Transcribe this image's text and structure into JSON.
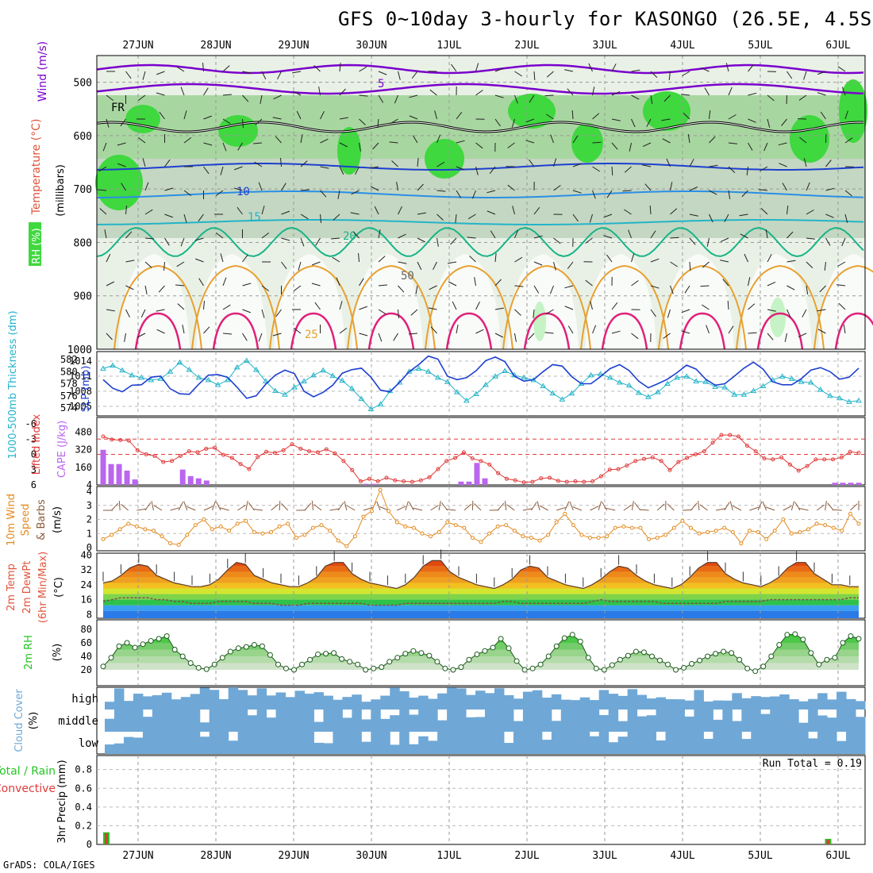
{
  "title": "GFS 0~10day 3-hourly for KASONGO (26.5E, 4.5S)",
  "credit": "GrADS: COLA/IGES",
  "colors": {
    "wind": "#7a00cc",
    "temperature": "#e0553c",
    "rh": "#23c623",
    "thickness": "#23b4c8",
    "slp": "#1d3fd0",
    "lifted": "#e03a3a",
    "cape": "#bb66ee",
    "wind10": "#e48a1e",
    "barb": "#8a5a3a",
    "cloud": "#6fa8d6",
    "precip_total": "#23c623",
    "precip_conv": "#e03a3a"
  },
  "dates": [
    "27JUN",
    "28JUN",
    "29JUN",
    "30JUN",
    "1JUL",
    "2JUL",
    "3JUL",
    "4JUL",
    "5JUL",
    "6JUL"
  ],
  "panels": {
    "upper": {
      "yticks": [
        "500",
        "600",
        "700",
        "800",
        "900",
        "1000"
      ],
      "ylabel_parts": [
        "Wind (m/s)",
        "Temperature (°C)",
        "RH (%)",
        "(millibars)"
      ],
      "contours": [
        {
          "label": "5",
          "note": "isotach"
        },
        {
          "label": "FR",
          "note": "freezing"
        },
        {
          "label": "10",
          "note": "isotherm"
        },
        {
          "label": "15",
          "note": "isotherm"
        },
        {
          "label": "20",
          "note": "isotherm"
        },
        {
          "label": "25",
          "note": "isotherm"
        },
        {
          "label": "50",
          "note": "rh"
        }
      ]
    },
    "slp": {
      "left_label": "1000-500mb Thickness (dm)",
      "right_label": "SLP (mb)",
      "left_ticks": [
        "582",
        "580",
        "578",
        "576",
        "574"
      ],
      "right_ticks": [
        "1014",
        "1011",
        "1008",
        "1005"
      ]
    },
    "cape": {
      "left_label": "Lifted Index",
      "right_label": "CAPE (J/kg)",
      "left_ticks": [
        "-6",
        "-3",
        "0",
        "3",
        "6"
      ],
      "right_ticks": [
        "480",
        "320",
        "160",
        "4"
      ]
    },
    "wind10": {
      "label_parts": [
        "10m Wind",
        "Speed",
        "& Barbs",
        "(m/s)"
      ],
      "ticks": [
        "4",
        "3",
        "2",
        "1",
        "0"
      ]
    },
    "temp": {
      "label_parts": [
        "2m Temp",
        "2m DewPt",
        "(6hr Min/Max)",
        "(°C)"
      ],
      "ticks": [
        "40",
        "32",
        "24",
        "16",
        "8"
      ]
    },
    "rh2m": {
      "label_parts": [
        "2m RH",
        "(%)"
      ],
      "ticks": [
        "80",
        "60",
        "40",
        "20"
      ]
    },
    "cloud": {
      "label_parts": [
        "Cloud Cover",
        "(%)"
      ],
      "levels": [
        "high",
        "middle",
        "low"
      ]
    },
    "precip": {
      "label_parts": [
        "Total / Rain",
        "Convective",
        "3hr Precip (mm)"
      ],
      "ticks": [
        "0.8",
        "0.6",
        "0.4",
        "0.2",
        "0"
      ],
      "run_total": "Run Total = 0.19"
    }
  },
  "chart_data": [
    {
      "type": "line",
      "title": "1000-500mb Thickness / SLP",
      "series": [
        {
          "name": "1000-500mb Thickness (dm)",
          "values": [
            580.5,
            581.0,
            580.2,
            579.4,
            579.0,
            578.6,
            578.8,
            580.0,
            581.5,
            580.3,
            579.0,
            578.6,
            577.8,
            578.6,
            580.7,
            581.8,
            580.3,
            578.4,
            576.8,
            576.2,
            577.4,
            578.4,
            579.4,
            580.2,
            579.3,
            578.5,
            577.2,
            575.5,
            573.8,
            574.6,
            576.8,
            578.2,
            580.0,
            580.5,
            580.0,
            579.0,
            578.3,
            576.6,
            575.2,
            576.3,
            577.8,
            579.2,
            580.1,
            579.4,
            579.0,
            578.6,
            577.6,
            576.4,
            575.4,
            576.4,
            578.0,
            579.4,
            579.6,
            579.0,
            578.2,
            577.7,
            576.5,
            575.8,
            576.6,
            578.0,
            579.0,
            579.2,
            578.4,
            578.3,
            577.5,
            577.4,
            576.2,
            576.2,
            576.8,
            577.6,
            578.6,
            579.2,
            578.8,
            578.3,
            578.2,
            577.0,
            576.0,
            575.6,
            575.0,
            575.2
          ]
        },
        {
          "name": "SLP (mb)",
          "values": [
            1010.3,
            1008.6,
            1007.9,
            1009.2,
            1009.3,
            1010.8,
            1011.0,
            1008.5,
            1007.5,
            1007.4,
            1009.4,
            1011.2,
            1011.3,
            1010.8,
            1008.8,
            1006.6,
            1007.1,
            1009.4,
            1011.2,
            1012.2,
            1011.5,
            1008.0,
            1006.9,
            1007.8,
            1009.2,
            1011.6,
            1012.3,
            1012.6,
            1010.8,
            1008.2,
            1007.9,
            1009.8,
            1011.9,
            1013.3,
            1015.0,
            1014.4,
            1011.0,
            1010.3,
            1010.7,
            1012.1,
            1014.1,
            1014.8,
            1013.9,
            1011.0,
            1010.0,
            1010.3,
            1011.9,
            1013.3,
            1013.0,
            1010.9,
            1009.5,
            1009.5,
            1010.9,
            1012.5,
            1013.3,
            1012.1,
            1010.0,
            1008.7,
            1009.5,
            1010.4,
            1011.7,
            1013.2,
            1012.4,
            1010.4,
            1009.2,
            1009.5,
            1011.0,
            1012.6,
            1013.8,
            1012.4,
            1009.9,
            1009.3,
            1009.3,
            1010.5,
            1012.2,
            1012.7,
            1011.9,
            1010.4,
            1010.8,
            1012.6
          ]
        }
      ]
    },
    {
      "type": "bar",
      "title": "Lifted Index / CAPE",
      "series": [
        {
          "name": "CAPE (J/kg)",
          "values": [
            320,
            190,
            190,
            130,
            50,
            0,
            0,
            0,
            0,
            0,
            140,
            80,
            60,
            40,
            0,
            0,
            0,
            0,
            0,
            0,
            0,
            0,
            0,
            0,
            0,
            0,
            0,
            0,
            0,
            0,
            0,
            0,
            0,
            10,
            10,
            0,
            0,
            0,
            0,
            0,
            0,
            0,
            0,
            0,
            0,
            30,
            30,
            200,
            60,
            0,
            0,
            0,
            0,
            0,
            0,
            0,
            0,
            0,
            0,
            0,
            0,
            0,
            0,
            0,
            0,
            0,
            0,
            0,
            0,
            0,
            0,
            0,
            0,
            0,
            0,
            0,
            0,
            0,
            0,
            0,
            0,
            0,
            0,
            0,
            0,
            0,
            0,
            0,
            0,
            0,
            0,
            0,
            20,
            20,
            20,
            20
          ]
        },
        {
          "name": "Lifted Index",
          "values": [
            -3.5,
            -2.9,
            -2.8,
            -2.7,
            -0.8,
            0.0,
            0.3,
            1.5,
            1.3,
            0.3,
            -0.6,
            -0.4,
            -1.1,
            -1.3,
            0.1,
            0.7,
            1.9,
            2.9,
            0.5,
            -0.5,
            -0.3,
            -0.8,
            -2.0,
            -1.1,
            -0.6,
            -0.4,
            -1.0,
            -0.2,
            1.3,
            3.1,
            5.3,
            4.8,
            5.3,
            4.6,
            5.1,
            5.3,
            5.4,
            5.1,
            4.5,
            2.9,
            1.3,
            0.7,
            -0.4,
            0.8,
            1.3,
            2.0,
            3.7,
            4.8,
            5.1,
            5.5,
            5.4,
            4.7,
            4.6,
            5.2,
            5.4,
            5.3,
            5.4,
            5.3,
            4.3,
            3.0,
            2.9,
            2.2,
            1.3,
            0.9,
            0.6,
            1.3,
            3.1,
            1.5,
            0.7,
            0.0,
            -0.6,
            -2.3,
            -3.8,
            -3.8,
            -3.5,
            -1.7,
            -0.6,
            0.8,
            1.0,
            0.6,
            2.0,
            3.2,
            2.3,
            1.0,
            1.0,
            1.0,
            0.6,
            -0.5,
            -0.3
          ]
        }
      ]
    },
    {
      "type": "line",
      "title": "10m Wind Speed",
      "series": [
        {
          "name": "Speed (m/s)",
          "values": [
            0.6,
            0.9,
            1.3,
            1.7,
            1.5,
            1.3,
            1.2,
            0.8,
            0.3,
            0.2,
            0.9,
            1.6,
            2.0,
            1.3,
            1.5,
            1.2,
            1.7,
            1.9,
            1.1,
            1.0,
            1.1,
            1.5,
            1.7,
            0.7,
            0.9,
            1.4,
            1.6,
            1.2,
            0.5,
            0.1,
            0.8,
            2.2,
            2.6,
            4.1,
            2.6,
            1.8,
            1.5,
            1.4,
            1.0,
            0.8,
            1.1,
            1.8,
            1.6,
            1.4,
            0.7,
            0.4,
            1.0,
            1.5,
            1.6,
            1.2,
            0.8,
            0.7,
            0.5,
            0.9,
            1.8,
            2.4,
            1.6,
            0.9,
            0.7,
            0.7,
            0.8,
            1.4,
            1.5,
            1.4,
            1.4,
            0.6,
            0.7,
            0.9,
            1.4,
            1.9,
            1.4,
            1.0,
            1.1,
            1.2,
            1.4,
            1.1,
            0.3,
            1.2,
            1.1,
            0.6,
            1.2,
            2.0,
            1.0,
            1.1,
            1.3,
            1.7,
            1.6,
            1.4,
            1.2,
            2.4,
            1.7
          ]
        }
      ]
    },
    {
      "type": "area",
      "title": "2m Temp / DewPt",
      "series": [
        {
          "name": "2m Temp (°C)",
          "values": [
            25,
            26,
            29,
            33,
            35,
            34,
            29,
            27,
            25,
            24,
            23,
            23,
            24,
            27,
            32,
            36,
            35,
            29,
            27,
            25,
            24,
            23,
            23,
            25,
            28,
            34,
            36,
            36,
            30,
            27,
            25,
            24,
            23,
            22,
            24,
            28,
            34,
            37,
            37,
            31,
            28,
            26,
            24,
            23,
            22,
            24,
            27,
            32,
            34,
            33,
            28,
            26,
            24,
            23,
            22,
            24,
            27,
            31,
            34,
            33,
            29,
            26,
            24,
            23,
            22,
            24,
            28,
            33,
            36,
            36,
            30,
            27,
            25,
            24,
            23,
            25,
            28,
            33,
            36,
            36,
            30,
            27,
            24,
            24,
            23,
            23
          ]
        },
        {
          "name": "2m DewPt (°C)",
          "values": [
            15,
            16,
            17,
            17,
            17,
            17,
            16,
            16,
            15,
            15,
            14,
            14,
            14,
            15,
            15,
            15,
            15,
            14,
            14,
            14,
            13,
            13,
            13,
            14,
            14,
            14,
            14,
            14,
            14,
            14,
            13,
            13,
            13,
            13,
            14,
            14,
            14,
            14,
            14,
            14,
            14,
            14,
            14,
            14,
            14,
            15,
            15,
            14,
            14,
            14,
            14,
            14,
            14,
            14,
            14,
            15,
            16,
            15,
            15,
            15,
            15,
            15,
            15,
            14,
            14,
            14,
            14,
            14,
            14,
            14,
            15,
            15,
            15,
            15,
            15,
            16,
            16,
            16,
            16,
            16,
            16,
            16,
            16,
            16,
            17,
            17
          ]
        }
      ]
    },
    {
      "type": "area",
      "title": "2m RH",
      "series": [
        {
          "name": "2m RH (%)",
          "values": [
            25,
            38,
            55,
            60,
            53,
            58,
            63,
            66,
            70,
            50,
            40,
            30,
            23,
            21,
            28,
            38,
            47,
            52,
            54,
            57,
            55,
            42,
            28,
            22,
            20,
            28,
            35,
            43,
            44,
            45,
            36,
            32,
            28,
            20,
            22,
            24,
            32,
            38,
            44,
            48,
            45,
            41,
            32,
            22,
            20,
            24,
            35,
            43,
            48,
            53,
            66,
            52,
            33,
            20,
            22,
            28,
            40,
            55,
            67,
            72,
            62,
            38,
            22,
            20,
            27,
            35,
            41,
            47,
            46,
            40,
            34,
            28,
            20,
            23,
            29,
            34,
            40,
            44,
            47,
            45,
            35,
            22,
            18,
            25,
            40,
            57,
            72,
            73,
            65,
            45,
            28,
            35,
            38,
            60,
            70,
            66
          ]
        }
      ]
    },
    {
      "type": "bar",
      "title": "3hr Precip",
      "series": [
        {
          "name": "Total / Rain (mm)",
          "values": [
            0.13,
            0.0,
            0.0,
            0.0,
            0.0,
            0.0,
            0.0,
            0.0,
            0.0,
            0.0,
            0.0,
            0.0,
            0.0,
            0.0,
            0.0,
            0.0,
            0.0,
            0.0,
            0.0,
            0.0,
            0.0,
            0.0,
            0.0,
            0.0,
            0.0,
            0.0,
            0.0,
            0.0,
            0.0,
            0.0,
            0.0,
            0.0,
            0.0,
            0.0,
            0.0,
            0.0,
            0.0,
            0.0,
            0.0,
            0.0,
            0.0,
            0.0,
            0.0,
            0.0,
            0.0,
            0.0,
            0.0,
            0.0,
            0.0,
            0.0,
            0.0,
            0.0,
            0.0,
            0.0,
            0.0,
            0.0,
            0.0,
            0.0,
            0.0,
            0.0,
            0.0,
            0.0,
            0.0,
            0.0,
            0.0,
            0.0,
            0.0,
            0.0,
            0.0,
            0.0,
            0.0,
            0.0,
            0.0,
            0.0,
            0.0,
            0.0,
            0.0,
            0.0,
            0.0,
            0.06,
            0.0,
            0.0,
            0.0
          ]
        },
        {
          "name": "Convective (mm)",
          "values": [
            0.12,
            0.0,
            0.0,
            0.0,
            0.0,
            0.0,
            0.0,
            0.0,
            0.0,
            0.0,
            0.0,
            0.0,
            0.0,
            0.0,
            0.0,
            0.0,
            0.0,
            0.0,
            0.0,
            0.0,
            0.0,
            0.0,
            0.0,
            0.0,
            0.0,
            0.0,
            0.0,
            0.0,
            0.0,
            0.0,
            0.0,
            0.0,
            0.0,
            0.0,
            0.0,
            0.0,
            0.0,
            0.0,
            0.0,
            0.0,
            0.0,
            0.0,
            0.0,
            0.0,
            0.0,
            0.0,
            0.0,
            0.0,
            0.0,
            0.0,
            0.0,
            0.0,
            0.0,
            0.0,
            0.0,
            0.0,
            0.0,
            0.0,
            0.0,
            0.0,
            0.0,
            0.0,
            0.0,
            0.0,
            0.0,
            0.0,
            0.0,
            0.0,
            0.0,
            0.0,
            0.0,
            0.0,
            0.0,
            0.0,
            0.0,
            0.0,
            0.0,
            0.0,
            0.0,
            0.05,
            0.0,
            0.0,
            0.0
          ]
        }
      ]
    }
  ]
}
